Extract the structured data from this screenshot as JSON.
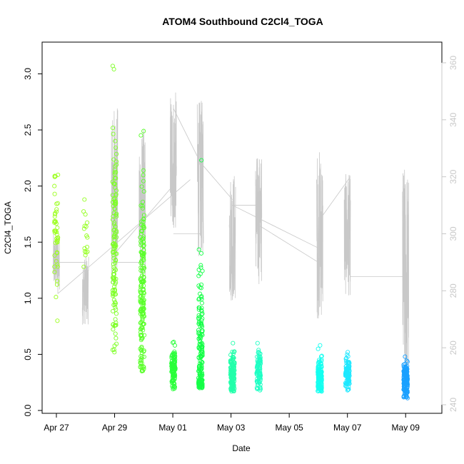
{
  "chart_data": {
    "type": "scatter",
    "title": "ATOM4 Southbound C2Cl4_TOGA",
    "xlabel": "Date",
    "ylabel": "C2Cl4_TOGA",
    "x_ticks": [
      "Apr 27",
      "Apr 29",
      "May 01",
      "May 03",
      "May 05",
      "May 07",
      "May 09"
    ],
    "xlim_days": [
      -0.8,
      13.3
    ],
    "ylim": [
      0,
      3.2
    ],
    "y_ticks": [
      "0.0",
      "0.5",
      "1.0",
      "1.5",
      "2.0",
      "2.5",
      "3.0"
    ],
    "right_axis": {
      "color": "#c8c8c8",
      "ylim": [
        238,
        364
      ],
      "ticks": [
        "240",
        "260",
        "280",
        "300",
        "320",
        "340",
        "360"
      ]
    },
    "legend": "none",
    "grid": false,
    "point_clusters": [
      {
        "day": 0.0,
        "n": 45,
        "min": 0.8,
        "max": 2.1,
        "center": 1.55,
        "color": "#9cff1f"
      },
      {
        "day": 1.0,
        "n": 16,
        "min": 1.28,
        "max": 1.88,
        "center": 1.6,
        "color": "#95ff22"
      },
      {
        "day": 2.0,
        "n": 130,
        "min": 0.52,
        "max": 3.07,
        "center": 1.4,
        "color": "#7dff25"
      },
      {
        "day": 2.95,
        "n": 180,
        "min": 0.35,
        "max": 2.49,
        "center": 1.05,
        "color": "#5aff2a"
      },
      {
        "day": 4.02,
        "n": 110,
        "min": 0.19,
        "max": 0.61,
        "center": 0.37,
        "color": "#2aff3a"
      },
      {
        "day": 4.95,
        "n": 180,
        "min": 0.2,
        "max": 2.23,
        "center": 0.45,
        "color": "#14ff47"
      },
      {
        "day": 6.05,
        "n": 140,
        "min": 0.17,
        "max": 0.6,
        "center": 0.32,
        "color": "#22ffaa"
      },
      {
        "day": 6.95,
        "n": 90,
        "min": 0.18,
        "max": 0.6,
        "center": 0.36,
        "color": "#1effc4"
      },
      {
        "day": 9.05,
        "n": 150,
        "min": 0.17,
        "max": 0.58,
        "center": 0.3,
        "color": "#14fff0"
      },
      {
        "day": 10.0,
        "n": 100,
        "min": 0.18,
        "max": 0.52,
        "center": 0.32,
        "color": "#1ee8ff"
      },
      {
        "day": 12.0,
        "n": 160,
        "min": 0.11,
        "max": 0.48,
        "center": 0.28,
        "color": "#1aa0ff"
      }
    ],
    "secondary_series": {
      "name": "",
      "color": "#c8c8c8",
      "segments": [
        {
          "day": 0.0,
          "low": 280,
          "high": 300
        },
        {
          "day": 1.0,
          "low": 268,
          "high": 292
        },
        {
          "day": 2.0,
          "low": 282,
          "high": 345
        },
        {
          "day": 2.95,
          "low": 282,
          "high": 337
        },
        {
          "day": 4.02,
          "low": 300,
          "high": 350
        },
        {
          "day": 4.95,
          "low": 292,
          "high": 347
        },
        {
          "day": 6.05,
          "low": 276,
          "high": 322
        },
        {
          "day": 6.95,
          "low": 282,
          "high": 328
        },
        {
          "day": 9.05,
          "low": 270,
          "high": 330
        },
        {
          "day": 10.0,
          "low": 278,
          "high": 321
        },
        {
          "day": 12.0,
          "low": 245,
          "high": 324
        }
      ],
      "connectors": [
        [
          0.05,
          279,
          0.05,
          290
        ],
        [
          0.05,
          290,
          1.0,
          290
        ],
        [
          0.05,
          279,
          4.6,
          319
        ],
        [
          2.0,
          290,
          2.95,
          290
        ],
        [
          2.0,
          293,
          4.1,
          318
        ],
        [
          4.02,
          344,
          4.95,
          325
        ],
        [
          4.02,
          300,
          4.95,
          300
        ],
        [
          4.95,
          325,
          6.05,
          312
        ],
        [
          6.05,
          310,
          6.95,
          310
        ],
        [
          6.05,
          310,
          9.0,
          295
        ],
        [
          6.95,
          303,
          9.0,
          290
        ],
        [
          9.05,
          305,
          10.1,
          320
        ],
        [
          10.1,
          285,
          12.0,
          285
        ]
      ]
    }
  }
}
